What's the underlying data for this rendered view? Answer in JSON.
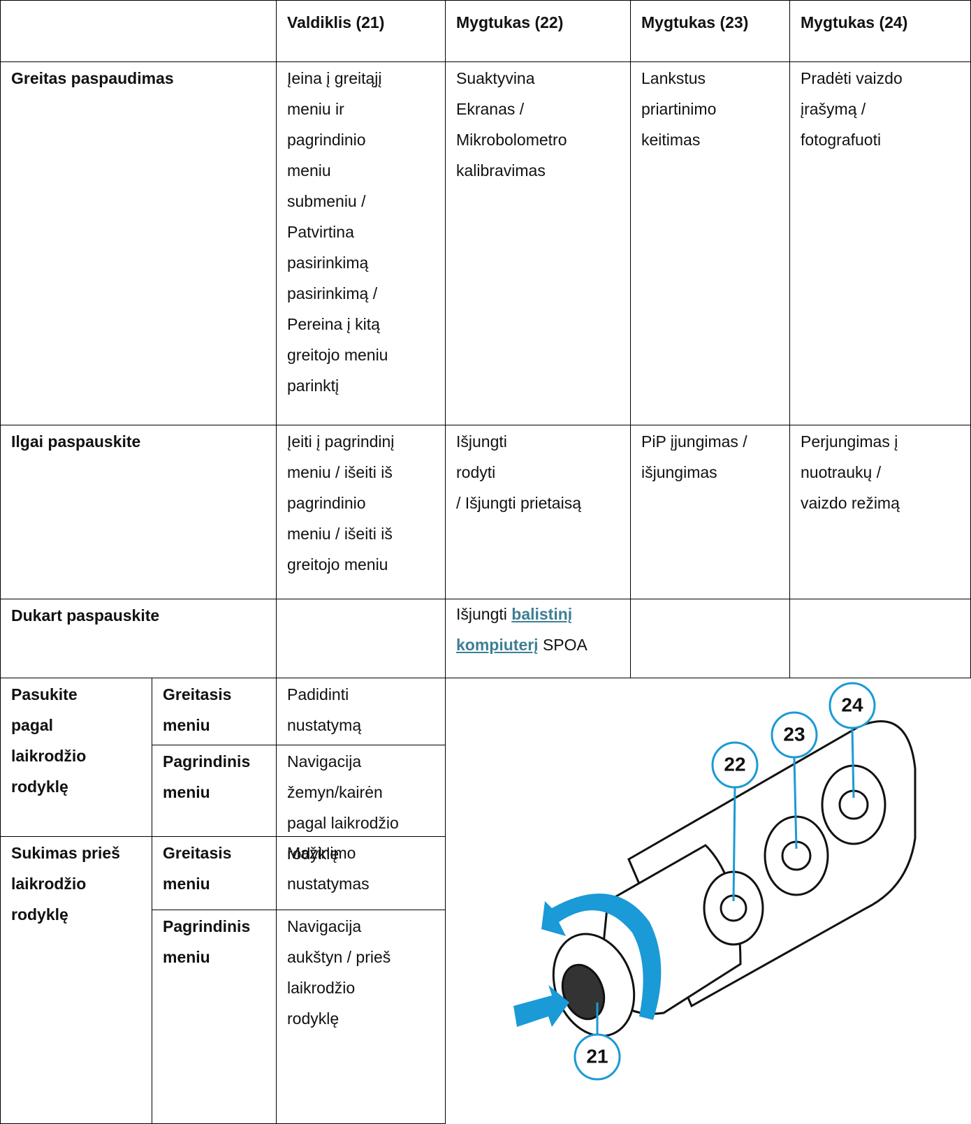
{
  "header": [
    "Valdiklis (21)",
    "Mygtukas (22)",
    "Mygtukas (23)",
    "Mygtukas (24)"
  ],
  "rows": [
    {
      "label": "Greitas paspaudimas",
      "cells": [
        [
          "Įeina į greitąjį",
          "meniu ir",
          "pagrindinio",
          "meniu",
          "submeniu /",
          "Patvirtina",
          "pasirinkimą",
          "pasirinkimą /",
          "Pereina į kitą",
          "greitojo meniu",
          "parinktį"
        ],
        [
          "Suaktyvina",
          "Ekranas /",
          "Mikrobolometro",
          "kalibravimas"
        ],
        [
          "Lankstus",
          "priartinimo",
          "keitimas"
        ],
        [
          "Pradėti vaizdo",
          "įrašymą /",
          "fotografuoti"
        ]
      ]
    },
    {
      "label": "Ilgai paspauskite",
      "cells": [
        [
          "Įeiti į pagrindinį",
          "meniu / išeiti iš",
          "pagrindinio",
          "meniu / išeiti iš",
          "greitojo meniu"
        ],
        [
          "Išjungti",
          "rodyti",
          "/ Išjungti prietaisą"
        ],
        [
          "PiP įjungimas /",
          "išjungimas"
        ],
        [
          "Perjungimas į",
          "nuotraukų /",
          "vaizdo režimą"
        ]
      ]
    },
    {
      "label": "Dukart paspauskite",
      "button22": {
        "text": "Išjungti",
        "link": "balistinį kompiuterį",
        "after": "SPOA"
      }
    }
  ],
  "rotation": [
    {
      "label": [
        "Pasukite",
        "pagal",
        "laikrodžio",
        "rodyklę"
      ],
      "modes": [
        {
          "menu": [
            "Greitasis",
            "meniu"
          ],
          "action": [
            "Padidinti",
            "nustatymą"
          ]
        },
        {
          "menu": [
            "Pagrindinis",
            "meniu"
          ],
          "action": [
            "Navigacija",
            "žemyn/kairėn",
            "pagal laikrodžio",
            "rodyklę"
          ]
        }
      ]
    },
    {
      "label": [
        "Sukimas prieš",
        "laikrodžio",
        "rodyklę"
      ],
      "modes": [
        {
          "menu": [
            "Greitasis",
            "meniu"
          ],
          "action": [
            "Mažinimo",
            "nustatymas"
          ]
        },
        {
          "menu": [
            "Pagrindinis",
            "meniu"
          ],
          "action": [
            "Navigacija",
            "aukštyn / prieš",
            "laikrodžio",
            "rodyklę"
          ]
        }
      ]
    }
  ],
  "figure": {
    "callouts": [
      "21",
      "22",
      "23",
      "24"
    ]
  }
}
